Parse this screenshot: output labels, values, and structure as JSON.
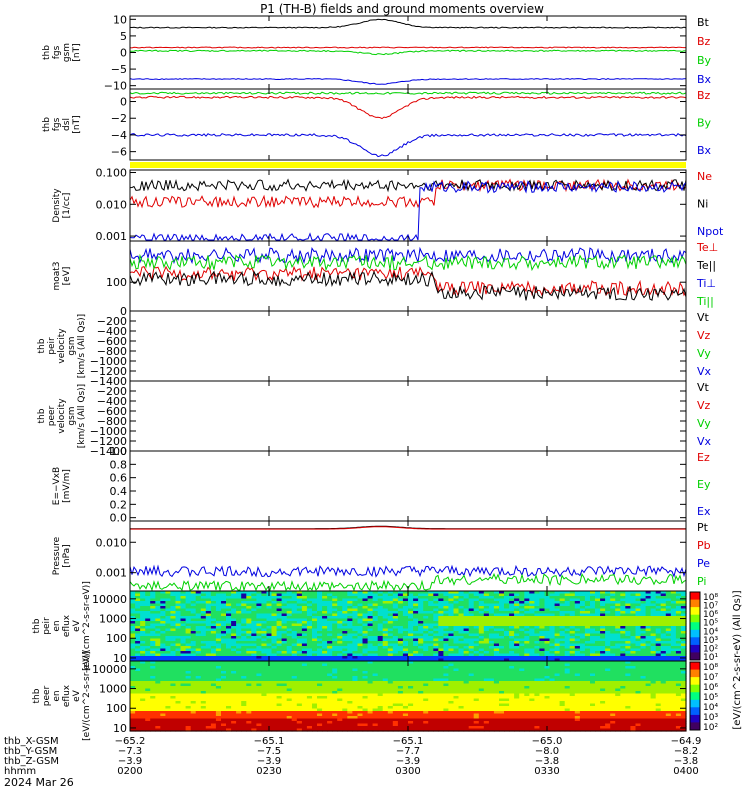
{
  "title": "P1 (TH-B) fields and ground moments overview",
  "date_label": "2024 Mar 26",
  "colors": {
    "black": "#000000",
    "red": "#e00000",
    "green": "#00d000",
    "blue": "#0000e0",
    "yellow": "#ffff00",
    "lightgreen": "#20e020"
  },
  "chart_data": [
    {
      "type": "line",
      "panel": "fgs_gsm",
      "ylabel": [
        "thb",
        "fgs",
        "gsm",
        "[nT]"
      ],
      "ylim": [
        -11,
        11
      ],
      "yticks": [
        "10",
        "5",
        "0",
        "−5",
        "−10"
      ],
      "ytick_values": [
        10,
        5,
        0,
        -5,
        -10
      ],
      "series": [
        {
          "name": "Bt",
          "color": "black",
          "level": 7.5,
          "bump": 2.5,
          "noise": 0.15
        },
        {
          "name": "Bz",
          "color": "red",
          "level": 1.5,
          "bump": 0,
          "noise": 0.15
        },
        {
          "name": "By",
          "color": "green",
          "level": 0.5,
          "bump": -1,
          "noise": 0.2
        },
        {
          "name": "Bx",
          "color": "blue",
          "level": -8,
          "bump": -1.5,
          "noise": 0.15
        }
      ]
    },
    {
      "type": "line",
      "panel": "fgs_dsl",
      "ylabel": [
        "thb",
        "fgs",
        "dsl",
        "[nT]"
      ],
      "ylim": [
        -7,
        1.5
      ],
      "yticks": [
        "0",
        "−2",
        "−4",
        "−6"
      ],
      "ytick_values": [
        0,
        -2,
        -4,
        -6
      ],
      "series": [
        {
          "name": "Bz",
          "color": "red",
          "level": 0.5,
          "bump": -2.5,
          "noise": 0.12
        },
        {
          "name": "By",
          "color": "green",
          "level": 1,
          "bump": 0,
          "noise": 0.12
        },
        {
          "name": "Bx",
          "color": "blue",
          "level": -4,
          "bump": -2.5,
          "noise": 0.15
        }
      ]
    },
    {
      "type": "line",
      "panel": "density",
      "ylabel": [
        "Density",
        "[1/cc]"
      ],
      "scale": "log",
      "ylim": [
        0.0007,
        0.12
      ],
      "yticks": [
        "0.100",
        "0.010",
        "0.001"
      ],
      "ytick_values": [
        0.1,
        0.01,
        0.001
      ],
      "series": [
        {
          "name": "Ne",
          "color": "red",
          "level": 0.012
        },
        {
          "name": "Ni",
          "color": "black",
          "level": 0.04
        },
        {
          "name": "Npot",
          "color": "blue",
          "level": 0.0008
        }
      ]
    },
    {
      "type": "line",
      "panel": "temperature",
      "ylabel": [
        "moat3",
        "[eV]"
      ],
      "scale": "log",
      "ylim": [
        20,
        1000
      ],
      "yticks": [
        "100"
      ],
      "ytick_values": [
        100
      ],
      "series": [
        {
          "name": "Te⊥",
          "color": "red",
          "level": 160
        },
        {
          "name": "Te||",
          "color": "black",
          "level": 120
        },
        {
          "name": "Ti⊥",
          "color": "blue",
          "level": 450
        },
        {
          "name": "Ti||",
          "color": "green",
          "level": 300
        }
      ]
    },
    {
      "type": "line",
      "panel": "peir_velocity",
      "ylabel": [
        "thb",
        "peir",
        "velocity",
        "gsm",
        "[km/s (All Qs)]"
      ],
      "ylim": [
        -1400,
        0
      ],
      "yticks": [
        "0",
        "−200",
        "−400",
        "−600",
        "−800",
        "−1000",
        "−1200",
        "−1400"
      ],
      "ytick_values": [
        0,
        -200,
        -400,
        -600,
        -800,
        -1000,
        -1200,
        -1400
      ],
      "series": [
        {
          "name": "Vt",
          "color": "black"
        },
        {
          "name": "Vz",
          "color": "red"
        },
        {
          "name": "Vy",
          "color": "green"
        },
        {
          "name": "Vx",
          "color": "blue"
        }
      ]
    },
    {
      "type": "line",
      "panel": "peer_velocity",
      "ylabel": [
        "thb",
        "peer",
        "velocity",
        "gsm",
        "[km/s (All Qs)]"
      ],
      "ylim": [
        -1400,
        0
      ],
      "yticks": [
        "−200",
        "−400",
        "−600",
        "−800",
        "−1000",
        "−1200",
        "−1400"
      ],
      "ytick_values": [
        -200,
        -400,
        -600,
        -800,
        -1000,
        -1200,
        -1400
      ],
      "series": [
        {
          "name": "Vt",
          "color": "black"
        },
        {
          "name": "Vz",
          "color": "red"
        },
        {
          "name": "Vy",
          "color": "green"
        },
        {
          "name": "Vx",
          "color": "blue"
        }
      ]
    },
    {
      "type": "line",
      "panel": "efield",
      "ylabel": [
        "E=−VxB",
        "[mV/m]"
      ],
      "ylim": [
        -0.05,
        1.0
      ],
      "yticks": [
        "1.0",
        "0.8",
        "0.6",
        "0.4",
        "0.2",
        "0.0"
      ],
      "ytick_values": [
        1.0,
        0.8,
        0.6,
        0.4,
        0.2,
        0.0
      ],
      "series": [
        {
          "name": "Ez",
          "color": "red"
        },
        {
          "name": "Ey",
          "color": "green"
        },
        {
          "name": "Ex",
          "color": "blue"
        }
      ]
    },
    {
      "type": "line",
      "panel": "pressure",
      "ylabel": [
        "Pressure",
        "[nPa]"
      ],
      "scale": "log",
      "ylim": [
        0.00025,
        0.05
      ],
      "yticks": [
        "0.010",
        "0.001"
      ],
      "ytick_values": [
        0.01,
        0.001
      ],
      "series": [
        {
          "name": "Pt",
          "color": "black",
          "level": 0.028
        },
        {
          "name": "Pb",
          "color": "red",
          "level": 0.027
        },
        {
          "name": "Pe",
          "color": "blue",
          "level": 0.0011
        },
        {
          "name": "Pi",
          "color": "green",
          "level": 0.00035
        }
      ]
    },
    {
      "type": "heatmap",
      "panel": "peir_spectrogram",
      "ylabel": [
        "thb",
        "peir",
        "en",
        "eflux",
        "eV",
        "[eV/(cm^2-s-sr-eV)]"
      ],
      "scale": "log",
      "ylim": [
        7,
        25000
      ],
      "yticks": [
        "10000",
        "1000",
        "100",
        "10"
      ],
      "ytick_values": [
        10000,
        1000,
        100,
        10
      ],
      "colorbar": {
        "labels": [
          "10⁸",
          "10⁷",
          "10⁶",
          "10⁵",
          "10⁴",
          "10³",
          "10²",
          "10¹"
        ]
      }
    },
    {
      "type": "heatmap",
      "panel": "peer_spectrogram",
      "ylabel": [
        "thb",
        "peer",
        "en",
        "eflux",
        "eV",
        "[eV/(cm^2-s-sr-eV)]"
      ],
      "scale": "log",
      "ylim": [
        7,
        25000
      ],
      "yticks": [
        "10000",
        "1000",
        "100",
        "10"
      ],
      "ytick_values": [
        10000,
        1000,
        100,
        10
      ],
      "colorbar": {
        "labels": [
          "10⁸",
          "10⁷",
          "10⁶",
          "10⁵",
          "10⁴",
          "10³",
          "10²"
        ]
      }
    }
  ],
  "colorbar_unit": "[eV/(cm^2-s-sr-eV) (All Qs)]",
  "xaxis": {
    "rows": [
      {
        "label": "thb_X-GSM",
        "values": [
          "−65.2",
          "−65.1",
          "−65.1",
          "−65.0",
          "−64.9"
        ]
      },
      {
        "label": "thb_Y-GSM",
        "values": [
          "−7.3",
          "−7.5",
          "−7.7",
          "−8.0",
          "−8.2"
        ]
      },
      {
        "label": "thb_Z-GSM",
        "values": [
          "−3.9",
          "−3.9",
          "−3.9",
          "−3.8",
          "−3.8"
        ]
      },
      {
        "label": "hhmm",
        "values": [
          "0200",
          "0230",
          "0300",
          "0330",
          "0400"
        ]
      }
    ]
  }
}
